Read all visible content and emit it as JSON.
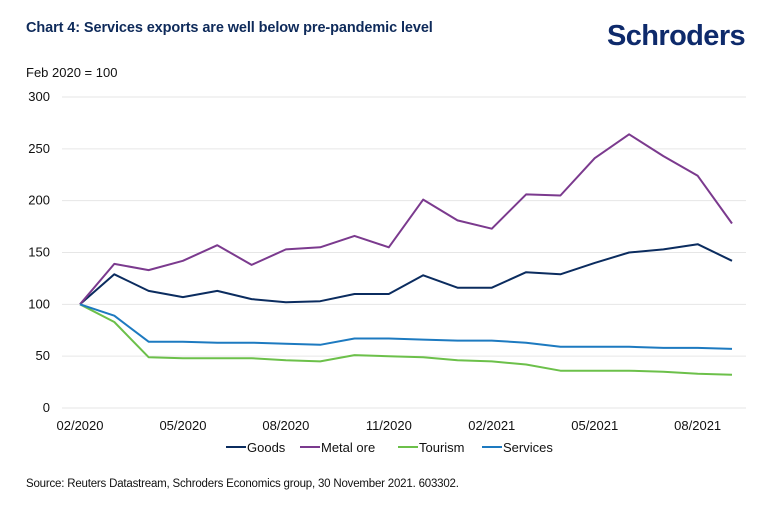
{
  "header": {
    "title": "Chart 4: Services exports are well below pre-pandemic level",
    "logo": "Schroders"
  },
  "footer": {
    "source": "Source: Reuters Datastream, Schroders Economics group, 30 November 2021. 603302."
  },
  "chart_data": {
    "type": "line",
    "title": "Chart 4: Services exports are well below pre-pandemic level",
    "ylabel": "Feb 2020 = 100",
    "xlabel": "",
    "ylim": [
      0,
      300
    ],
    "yticks": [
      0,
      50,
      100,
      150,
      200,
      250,
      300
    ],
    "grid": true,
    "legend_position": "bottom",
    "x": [
      "02/2020",
      "03/2020",
      "04/2020",
      "05/2020",
      "06/2020",
      "07/2020",
      "08/2020",
      "09/2020",
      "10/2020",
      "11/2020",
      "12/2020",
      "01/2021",
      "02/2021",
      "03/2021",
      "04/2021",
      "05/2021",
      "06/2021",
      "07/2021",
      "08/2021",
      "09/2021"
    ],
    "xtick_labels": [
      "02/2020",
      "05/2020",
      "08/2020",
      "11/2020",
      "02/2021",
      "05/2021",
      "08/2021"
    ],
    "series": [
      {
        "name": "Goods",
        "color": "#0b2c5f",
        "values": [
          100,
          129,
          113,
          107,
          113,
          105,
          102,
          103,
          110,
          110,
          128,
          116,
          116,
          131,
          129,
          140,
          150,
          153,
          158,
          142
        ]
      },
      {
        "name": "Metal ore",
        "color": "#7b3a8e",
        "values": [
          100,
          139,
          133,
          142,
          157,
          138,
          153,
          155,
          166,
          155,
          201,
          181,
          173,
          206,
          205,
          241,
          264,
          243,
          224,
          178
        ]
      },
      {
        "name": "Tourism",
        "color": "#6cc04a",
        "values": [
          100,
          83,
          49,
          48,
          48,
          48,
          46,
          45,
          51,
          50,
          49,
          46,
          45,
          42,
          36,
          36,
          36,
          35,
          33,
          32
        ]
      },
      {
        "name": "Services",
        "color": "#1d7ac0",
        "values": [
          100,
          89,
          64,
          64,
          63,
          63,
          62,
          61,
          67,
          67,
          66,
          65,
          65,
          63,
          59,
          59,
          59,
          58,
          58,
          57
        ]
      }
    ]
  }
}
